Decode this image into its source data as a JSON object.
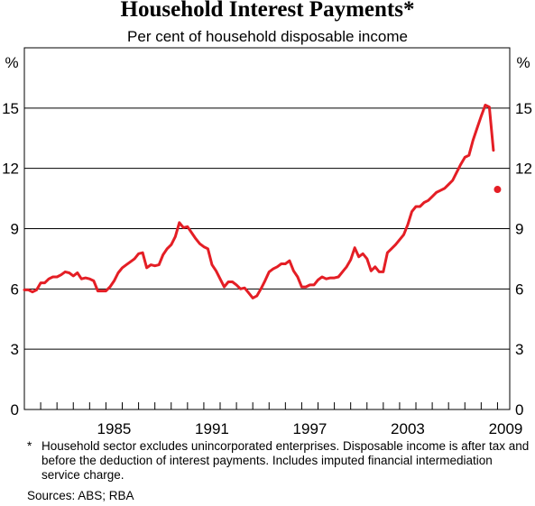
{
  "chart_data": {
    "type": "line",
    "title": "Household Interest Payments*",
    "subtitle": "Per cent of household disposable income",
    "ylabel_left": "%",
    "ylabel_right": "%",
    "ylim": [
      0,
      18
    ],
    "yticks": [
      0,
      3,
      6,
      9,
      12,
      15
    ],
    "xlim": [
      1980.0,
      2009.75
    ],
    "xtick_labels": [
      "1985",
      "1991",
      "1997",
      "2003",
      "2009"
    ],
    "xtick_values": [
      1985.5,
      1991.5,
      1997.5,
      2003.5,
      2009.5
    ],
    "grid": true,
    "line_color": "#e41e25",
    "series": [
      {
        "values": [
          [
            1980.0,
            5.95
          ],
          [
            1980.25,
            5.95
          ],
          [
            1980.5,
            5.85
          ],
          [
            1980.75,
            5.95
          ],
          [
            1981.0,
            6.3
          ],
          [
            1981.25,
            6.3
          ],
          [
            1981.5,
            6.5
          ],
          [
            1981.75,
            6.6
          ],
          [
            1982.0,
            6.6
          ],
          [
            1982.25,
            6.7
          ],
          [
            1982.5,
            6.85
          ],
          [
            1982.75,
            6.8
          ],
          [
            1983.0,
            6.65
          ],
          [
            1983.25,
            6.8
          ],
          [
            1983.5,
            6.5
          ],
          [
            1983.75,
            6.55
          ],
          [
            1984.0,
            6.5
          ],
          [
            1984.25,
            6.4
          ],
          [
            1984.5,
            5.9
          ],
          [
            1984.75,
            5.9
          ],
          [
            1985.0,
            5.9
          ],
          [
            1985.25,
            6.1
          ],
          [
            1985.5,
            6.4
          ],
          [
            1985.75,
            6.8
          ],
          [
            1986.0,
            7.05
          ],
          [
            1986.25,
            7.2
          ],
          [
            1986.5,
            7.35
          ],
          [
            1986.75,
            7.5
          ],
          [
            1987.0,
            7.75
          ],
          [
            1987.25,
            7.8
          ],
          [
            1987.5,
            7.05
          ],
          [
            1987.75,
            7.2
          ],
          [
            1988.0,
            7.15
          ],
          [
            1988.25,
            7.2
          ],
          [
            1988.5,
            7.7
          ],
          [
            1988.75,
            8.0
          ],
          [
            1989.0,
            8.2
          ],
          [
            1989.25,
            8.6
          ],
          [
            1989.5,
            9.3
          ],
          [
            1989.75,
            9.05
          ],
          [
            1990.0,
            9.1
          ],
          [
            1990.25,
            8.8
          ],
          [
            1990.5,
            8.5
          ],
          [
            1990.75,
            8.25
          ],
          [
            1991.0,
            8.1
          ],
          [
            1991.25,
            8.0
          ],
          [
            1991.5,
            7.2
          ],
          [
            1991.75,
            6.9
          ],
          [
            1992.0,
            6.5
          ],
          [
            1992.25,
            6.1
          ],
          [
            1992.5,
            6.35
          ],
          [
            1992.75,
            6.35
          ],
          [
            1993.0,
            6.2
          ],
          [
            1993.25,
            6.0
          ],
          [
            1993.5,
            6.05
          ],
          [
            1993.75,
            5.8
          ],
          [
            1994.0,
            5.55
          ],
          [
            1994.25,
            5.65
          ],
          [
            1994.5,
            6.0
          ],
          [
            1994.75,
            6.4
          ],
          [
            1995.0,
            6.85
          ],
          [
            1995.25,
            7.0
          ],
          [
            1995.5,
            7.1
          ],
          [
            1995.75,
            7.25
          ],
          [
            1996.0,
            7.25
          ],
          [
            1996.25,
            7.4
          ],
          [
            1996.5,
            6.9
          ],
          [
            1996.75,
            6.6
          ],
          [
            1997.0,
            6.1
          ],
          [
            1997.25,
            6.1
          ],
          [
            1997.5,
            6.2
          ],
          [
            1997.75,
            6.2
          ],
          [
            1998.0,
            6.45
          ],
          [
            1998.25,
            6.6
          ],
          [
            1998.5,
            6.5
          ],
          [
            1998.75,
            6.55
          ],
          [
            1999.0,
            6.55
          ],
          [
            1999.25,
            6.6
          ],
          [
            1999.5,
            6.85
          ],
          [
            1999.75,
            7.1
          ],
          [
            2000.0,
            7.45
          ],
          [
            2000.25,
            8.05
          ],
          [
            2000.5,
            7.6
          ],
          [
            2000.75,
            7.75
          ],
          [
            2001.0,
            7.5
          ],
          [
            2001.25,
            6.9
          ],
          [
            2001.5,
            7.1
          ],
          [
            2001.75,
            6.85
          ],
          [
            2002.0,
            6.85
          ],
          [
            2002.25,
            7.8
          ],
          [
            2002.5,
            8.0
          ],
          [
            2002.75,
            8.2
          ],
          [
            2003.0,
            8.45
          ],
          [
            2003.25,
            8.7
          ],
          [
            2003.5,
            9.2
          ],
          [
            2003.75,
            9.85
          ],
          [
            2004.0,
            10.1
          ],
          [
            2004.25,
            10.1
          ],
          [
            2004.5,
            10.3
          ],
          [
            2004.75,
            10.4
          ],
          [
            2005.0,
            10.6
          ],
          [
            2005.25,
            10.8
          ],
          [
            2005.5,
            10.9
          ],
          [
            2005.75,
            11.0
          ],
          [
            2006.0,
            11.2
          ],
          [
            2006.25,
            11.4
          ],
          [
            2006.5,
            11.8
          ],
          [
            2006.75,
            12.2
          ],
          [
            2007.0,
            12.55
          ],
          [
            2007.25,
            12.65
          ],
          [
            2007.5,
            13.4
          ],
          [
            2007.75,
            14.0
          ],
          [
            2008.0,
            14.6
          ],
          [
            2008.25,
            15.15
          ],
          [
            2008.5,
            15.05
          ],
          [
            2008.75,
            12.9
          ]
        ]
      },
      {
        "values": [
          [
            2009.0,
            10.95
          ]
        ]
      }
    ]
  },
  "footnote": {
    "marker": "*",
    "text": "Household sector excludes unincorporated enterprises. Disposable income is after tax and before the deduction of interest payments. Includes imputed financial intermediation service charge."
  },
  "sources": "Sources: ABS; RBA"
}
